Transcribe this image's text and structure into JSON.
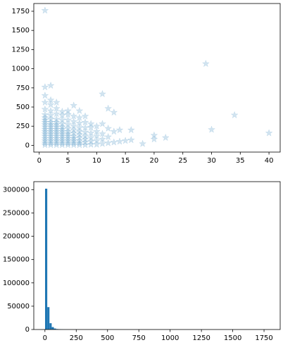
{
  "chart_data": [
    {
      "type": "scatter",
      "color": "#1f77b4",
      "alpha": 0.2,
      "marker": "star",
      "xlim": [
        -0.95,
        41.95
      ],
      "ylim": [
        -88,
        1851
      ],
      "xticks": [
        0,
        5,
        10,
        15,
        20,
        25,
        30,
        35,
        40
      ],
      "yticks": [
        0,
        250,
        500,
        750,
        1000,
        1250,
        1500,
        1750
      ],
      "x": [
        1,
        1,
        1,
        1,
        1,
        1,
        1,
        1,
        1,
        1,
        1,
        1,
        1,
        1,
        1,
        1,
        1,
        1,
        1,
        2,
        2,
        2,
        2,
        2,
        2,
        2,
        2,
        2,
        2,
        2,
        2,
        2,
        2,
        2,
        2,
        2,
        3,
        3,
        3,
        3,
        3,
        3,
        3,
        3,
        3,
        3,
        3,
        3,
        3,
        3,
        3,
        4,
        4,
        4,
        4,
        4,
        4,
        4,
        4,
        4,
        4,
        4,
        4,
        4,
        5,
        5,
        5,
        5,
        5,
        5,
        5,
        5,
        5,
        5,
        5,
        5,
        6,
        6,
        6,
        6,
        6,
        6,
        6,
        6,
        6,
        6,
        6,
        7,
        7,
        7,
        7,
        7,
        7,
        7,
        7,
        7,
        7,
        8,
        8,
        8,
        8,
        8,
        8,
        8,
        8,
        9,
        9,
        9,
        9,
        9,
        9,
        10,
        10,
        10,
        10,
        10,
        11,
        11,
        11,
        11,
        11,
        12,
        12,
        12,
        12,
        13,
        13,
        13,
        14,
        14,
        15,
        16,
        16,
        18,
        20,
        20,
        22,
        29,
        30,
        34,
        40
      ],
      "y": [
        5,
        30,
        60,
        90,
        120,
        150,
        180,
        210,
        240,
        270,
        300,
        330,
        360,
        400,
        470,
        560,
        650,
        760,
        1760,
        5,
        30,
        60,
        90,
        120,
        150,
        180,
        210,
        240,
        270,
        300,
        340,
        390,
        450,
        530,
        590,
        780,
        5,
        30,
        60,
        90,
        120,
        150,
        180,
        210,
        240,
        270,
        300,
        340,
        410,
        480,
        560,
        5,
        30,
        60,
        90,
        120,
        150,
        180,
        210,
        240,
        280,
        330,
        390,
        440,
        5,
        30,
        60,
        90,
        120,
        150,
        180,
        220,
        270,
        330,
        400,
        450,
        5,
        30,
        60,
        90,
        120,
        160,
        200,
        250,
        310,
        380,
        520,
        5,
        30,
        60,
        100,
        140,
        180,
        230,
        290,
        360,
        450,
        5,
        40,
        80,
        120,
        170,
        230,
        300,
        380,
        10,
        50,
        100,
        160,
        230,
        280,
        10,
        60,
        120,
        180,
        250,
        20,
        80,
        150,
        280,
        670,
        30,
        110,
        220,
        480,
        40,
        180,
        430,
        50,
        200,
        60,
        70,
        200,
        20,
        80,
        130,
        100,
        1065,
        205,
        395,
        160
      ]
    },
    {
      "type": "histogram",
      "color": "#1f77b4",
      "xlim": [
        -89,
        1879
      ],
      "ylim": [
        0,
        317100
      ],
      "xticks": [
        0,
        250,
        500,
        750,
        1000,
        1250,
        1500,
        1750
      ],
      "yticks": [
        0,
        50000,
        100000,
        150000,
        200000,
        250000,
        300000
      ],
      "bins": [
        1,
        18.6,
        36.2,
        53.8,
        71.4,
        89,
        106.6,
        124.2,
        141.8,
        159.4,
        177,
        194.6,
        212.2,
        229.8,
        247.4,
        265,
        282.6,
        300.2,
        317.8,
        335.4,
        353,
        370.6,
        388.2,
        405.8,
        423.4,
        441,
        458.6,
        476.2,
        493.8,
        511.4,
        529,
        546.6,
        564.2,
        581.8,
        599.4,
        617,
        634.6,
        652.2,
        669.8,
        687.4,
        705,
        722.6,
        740.2,
        757.8,
        775.4,
        793,
        810.6,
        828.2,
        845.8,
        863.4,
        881,
        898.6,
        916.2,
        933.8,
        951.4,
        969,
        986.6,
        1004.2,
        1021.8,
        1039.4,
        1057,
        1074.6,
        1092.2,
        1109.8,
        1127.4,
        1145,
        1162.6,
        1180.2,
        1197.8,
        1215.4,
        1233,
        1250.6,
        1268.2,
        1285.8,
        1303.4,
        1321,
        1338.6,
        1356.2,
        1373.8,
        1391.4,
        1409,
        1426.6,
        1444.2,
        1461.8,
        1479.4,
        1497,
        1514.6,
        1532.2,
        1549.8,
        1567.4,
        1585,
        1602.6,
        1620.2,
        1637.8,
        1655.4,
        1673,
        1690.6,
        1708.2,
        1725.8,
        1743.4,
        1761
      ],
      "counts": [
        302000,
        48000,
        13500,
        5200,
        2100,
        1000,
        550,
        300,
        170,
        100,
        60,
        40,
        25,
        15,
        10,
        8,
        5,
        4,
        3,
        2,
        2,
        1,
        1,
        0,
        1,
        0,
        0,
        1,
        0,
        1,
        0,
        0,
        1,
        0,
        0,
        0,
        1,
        0,
        0,
        0,
        0,
        1,
        0,
        0,
        0,
        0,
        0,
        0,
        0,
        0,
        0,
        0,
        0,
        0,
        0,
        0,
        1,
        0,
        0,
        0,
        0,
        0,
        0,
        0,
        0,
        0,
        0,
        0,
        0,
        0,
        0,
        0,
        0,
        0,
        0,
        0,
        0,
        0,
        0,
        0,
        0,
        0,
        0,
        0,
        0,
        0,
        0,
        0,
        0,
        0,
        0,
        0,
        0,
        0,
        0,
        0,
        0,
        0,
        0,
        1
      ]
    }
  ]
}
